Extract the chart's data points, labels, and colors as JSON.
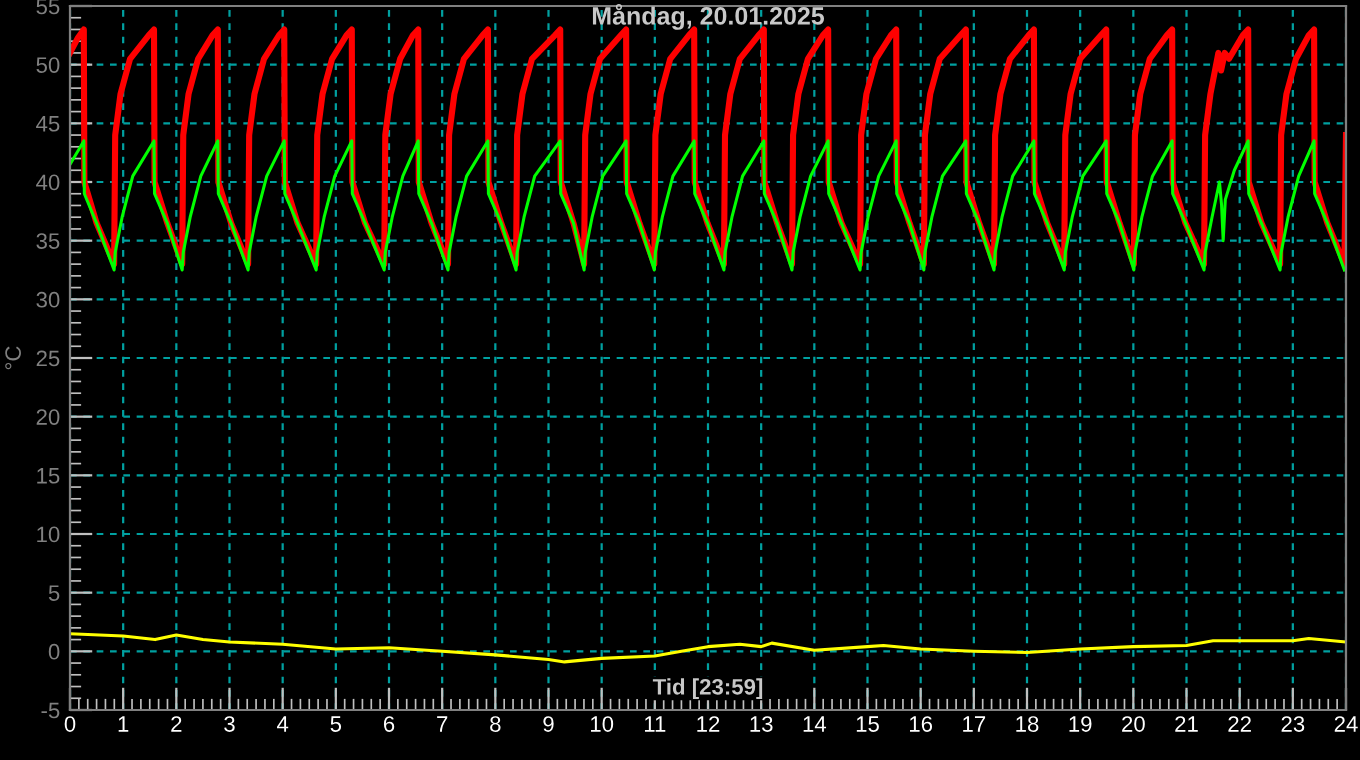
{
  "chart_data": {
    "type": "line",
    "title": "Måndag, 20.01.2025",
    "xlabel": "Tid [23:59]",
    "ylabel": "°C",
    "xlim": [
      0,
      24
    ],
    "xticks": [
      0,
      1,
      2,
      3,
      4,
      5,
      6,
      7,
      8,
      9,
      10,
      11,
      12,
      13,
      14,
      15,
      16,
      17,
      18,
      19,
      20,
      21,
      22,
      23,
      24
    ],
    "ylim": [
      -5,
      55
    ],
    "yticks": [
      -5,
      0,
      5,
      10,
      15,
      20,
      25,
      30,
      35,
      40,
      45,
      50,
      55
    ],
    "grid": true,
    "line_style": "solid",
    "marker": "none",
    "series": [
      {
        "color": "#ff0000",
        "x": [
          0,
          0.15,
          0.26,
          0.27,
          0.5,
          0.83,
          0.85,
          0.95,
          1.13,
          1.48,
          1.58,
          1.59,
          1.83,
          2.11,
          2.13,
          2.23,
          2.41,
          2.68,
          2.78,
          2.79,
          3.03,
          3.35,
          3.37,
          3.47,
          3.65,
          3.93,
          4.03,
          4.04,
          4.28,
          4.63,
          4.65,
          4.75,
          4.93,
          5.2,
          5.3,
          5.31,
          5.55,
          5.91,
          5.93,
          6.03,
          6.21,
          6.45,
          6.55,
          6.56,
          6.8,
          7.11,
          7.13,
          7.23,
          7.41,
          7.76,
          7.86,
          7.87,
          8.11,
          8.39,
          8.41,
          8.51,
          8.69,
          9.12,
          9.22,
          9.23,
          9.47,
          9.67,
          9.69,
          9.79,
          9.97,
          10.36,
          10.46,
          10.47,
          10.71,
          10.99,
          11.01,
          11.11,
          11.29,
          11.64,
          11.74,
          11.75,
          11.99,
          12.3,
          12.32,
          12.42,
          12.6,
          12.95,
          13.05,
          13.06,
          13.3,
          13.58,
          13.6,
          13.7,
          13.88,
          14.16,
          14.26,
          14.27,
          14.51,
          14.86,
          14.88,
          14.98,
          15.16,
          15.44,
          15.54,
          15.55,
          15.79,
          16.06,
          16.08,
          16.18,
          16.36,
          16.75,
          16.85,
          16.86,
          17.1,
          17.38,
          17.4,
          17.5,
          17.68,
          18.03,
          18.13,
          18.14,
          18.38,
          18.7,
          18.72,
          18.82,
          19.0,
          19.39,
          19.49,
          19.5,
          19.74,
          20.01,
          20.03,
          20.13,
          20.31,
          20.63,
          20.73,
          20.74,
          20.98,
          21.33,
          21.35,
          21.45,
          21.6,
          21.65,
          21.72,
          21.8,
          22.06,
          22.16,
          22.17,
          22.41,
          22.76,
          22.78,
          22.88,
          23.06,
          23.3,
          23.4,
          23.41,
          23.65,
          23.97,
          24
        ],
        "values": [
          51,
          52.3,
          53,
          40,
          36.5,
          33,
          44,
          47.5,
          50.5,
          52.5,
          53,
          40,
          36.5,
          33,
          44,
          47.5,
          50.5,
          52.5,
          53,
          40,
          36.5,
          33,
          44,
          47.5,
          50.5,
          52.5,
          53,
          40,
          36.5,
          33,
          44,
          47.5,
          50.5,
          52.5,
          53,
          40,
          36.5,
          33,
          44,
          47.5,
          50.5,
          52.5,
          53,
          40,
          36.5,
          33,
          44,
          47.5,
          50.5,
          52.5,
          53,
          40,
          36.5,
          33,
          44,
          47.5,
          50.5,
          52.5,
          53,
          40,
          36.5,
          33,
          44,
          47.5,
          50.5,
          52.5,
          53,
          40,
          36.5,
          33,
          44,
          47.5,
          50.5,
          52.5,
          53,
          40,
          36.5,
          33,
          44,
          47.5,
          50.5,
          52.5,
          53,
          40,
          36.5,
          33,
          44,
          47.5,
          50.5,
          52.5,
          53,
          40,
          36.5,
          33,
          44,
          47.5,
          50.5,
          52.5,
          53,
          40,
          36.5,
          33,
          44,
          47.5,
          50.5,
          52.5,
          53,
          40,
          36.5,
          33,
          44,
          47.5,
          50.5,
          52.5,
          53,
          40,
          36.5,
          33,
          44,
          47.5,
          50.5,
          52.5,
          53,
          40,
          36.5,
          33,
          44,
          47.5,
          50.5,
          52.5,
          53,
          40,
          36.5,
          33,
          44,
          47.5,
          51,
          49.5,
          51,
          50.5,
          52.5,
          53,
          40,
          36.5,
          33,
          44,
          47.5,
          50.5,
          52.5,
          53,
          40,
          36.5,
          33,
          44
        ]
      },
      {
        "color": "#00ff00",
        "x": [
          0,
          0.26,
          0.27,
          0.5,
          0.83,
          0.85,
          0.98,
          1.18,
          1.58,
          1.59,
          1.83,
          2.11,
          2.13,
          2.26,
          2.46,
          2.78,
          2.79,
          3.03,
          3.35,
          3.37,
          3.5,
          3.7,
          4.03,
          4.04,
          4.28,
          4.63,
          4.65,
          4.78,
          4.98,
          5.3,
          5.31,
          5.55,
          5.91,
          5.93,
          6.06,
          6.26,
          6.55,
          6.56,
          6.8,
          7.11,
          7.13,
          7.26,
          7.46,
          7.86,
          7.87,
          8.11,
          8.39,
          8.41,
          8.54,
          8.74,
          9.22,
          9.23,
          9.47,
          9.67,
          9.69,
          9.82,
          10.02,
          10.46,
          10.47,
          10.71,
          10.99,
          11.01,
          11.14,
          11.34,
          11.74,
          11.75,
          11.99,
          12.3,
          12.32,
          12.45,
          12.65,
          13.05,
          13.06,
          13.3,
          13.58,
          13.6,
          13.73,
          13.93,
          14.26,
          14.27,
          14.51,
          14.86,
          14.88,
          15.01,
          15.21,
          15.54,
          15.55,
          15.79,
          16.06,
          16.08,
          16.21,
          16.41,
          16.85,
          16.86,
          17.1,
          17.38,
          17.4,
          17.53,
          17.73,
          18.13,
          18.14,
          18.38,
          18.7,
          18.72,
          18.85,
          19.05,
          19.49,
          19.5,
          19.74,
          20.01,
          20.03,
          20.16,
          20.36,
          20.73,
          20.74,
          20.98,
          21.33,
          21.35,
          21.48,
          21.62,
          21.66,
          21.69,
          21.73,
          21.9,
          22.16,
          22.17,
          22.41,
          22.76,
          22.78,
          22.91,
          23.11,
          23.4,
          23.41,
          23.65,
          23.97
        ],
        "values": [
          41.5,
          43.5,
          39,
          36.5,
          32.5,
          34,
          37,
          40.5,
          43.5,
          39,
          36.5,
          32.5,
          34,
          37,
          40.5,
          43.5,
          39,
          36.5,
          32.5,
          34,
          37,
          40.5,
          43.5,
          39,
          36.5,
          32.5,
          34,
          37,
          40.5,
          43.5,
          39,
          36.5,
          32.5,
          34,
          37,
          40.5,
          43.5,
          39,
          36.5,
          32.5,
          34,
          37,
          40.5,
          43.5,
          39,
          36.5,
          32.5,
          34,
          37,
          40.5,
          43.5,
          39,
          36.5,
          32.5,
          34,
          37,
          40.5,
          43.5,
          39,
          36.5,
          32.5,
          34,
          37,
          40.5,
          43.5,
          39,
          36.5,
          32.5,
          34,
          37,
          40.5,
          43.5,
          39,
          36.5,
          32.5,
          34,
          37,
          40.5,
          43.5,
          39,
          36.5,
          32.5,
          34,
          37,
          40.5,
          43.5,
          39,
          36.5,
          32.5,
          34,
          37,
          40.5,
          43.5,
          39,
          36.5,
          32.5,
          34,
          37,
          40.5,
          43.5,
          39,
          36.5,
          32.5,
          34,
          37,
          40.5,
          43.5,
          39,
          36.5,
          32.5,
          34,
          37,
          40.5,
          43.5,
          39,
          36.5,
          32.5,
          34,
          37,
          40,
          38,
          35,
          38.5,
          41,
          43.5,
          39,
          36.5,
          32.5,
          34,
          37,
          40.5,
          43.5,
          39,
          36.5,
          32.5
        ]
      },
      {
        "color": "#ffff00",
        "x": [
          0,
          1,
          1.6,
          2,
          2.5,
          3,
          4,
          5,
          6,
          7,
          8,
          9,
          9.3,
          10,
          11,
          11.5,
          12,
          12.6,
          13,
          13.2,
          14,
          15,
          15.3,
          16,
          17,
          18,
          19,
          20,
          21,
          21.5,
          22,
          23,
          23.3,
          24
        ],
        "values": [
          1.5,
          1.3,
          1.0,
          1.4,
          1.0,
          0.8,
          0.6,
          0.2,
          0.3,
          0.0,
          -0.3,
          -0.7,
          -0.9,
          -0.6,
          -0.4,
          0.0,
          0.4,
          0.6,
          0.4,
          0.7,
          0.1,
          0.4,
          0.5,
          0.2,
          0.0,
          -0.1,
          0.2,
          0.4,
          0.5,
          0.9,
          0.9,
          0.9,
          1.1,
          0.8
        ]
      }
    ]
  }
}
